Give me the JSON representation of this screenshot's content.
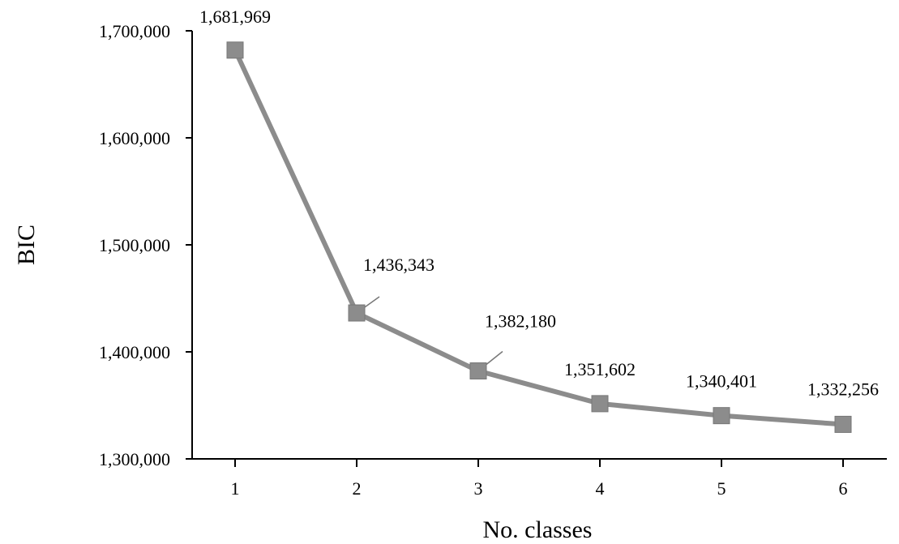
{
  "chart_data": {
    "type": "line",
    "title": "",
    "xlabel": "No. classes",
    "ylabel": "BIC",
    "x": [
      1,
      2,
      3,
      4,
      5,
      6
    ],
    "x_tick_labels": [
      "1",
      "2",
      "3",
      "4",
      "5",
      "6"
    ],
    "series": [
      {
        "values": [
          1681969,
          1436343,
          1382180,
          1351602,
          1340401,
          1332256
        ],
        "data_labels": [
          "1,681,969",
          "1,436,343",
          "1,382,180",
          "1,351,602",
          "1,340,401",
          "1,332,256"
        ],
        "color": "#8c8c8c",
        "marker": "square"
      }
    ],
    "ylim": [
      1300000,
      1700000
    ],
    "y_ticks": [
      1300000,
      1400000,
      1500000,
      1600000,
      1700000
    ],
    "y_tick_labels": [
      "1,300,000",
      "1,400,000",
      "1,500,000",
      "1,600,000",
      "1,700,000"
    ],
    "grid": false,
    "legend": "none"
  }
}
